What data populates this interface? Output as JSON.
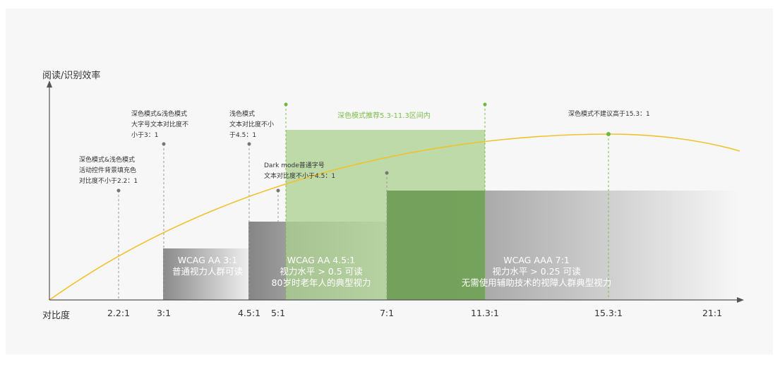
{
  "y_axis_label": "阅读/识别效率",
  "x_axis_label": "对比度",
  "ticks": [
    "2.2:1",
    "3:1",
    "4.5:1",
    "5:1",
    "7:1",
    "11.3:1",
    "15.3:1",
    "21:1"
  ],
  "annotations": {
    "a22": [
      "深色模式&浅色模式",
      "活动控件背景填充色",
      "对比度不小于2.2：1"
    ],
    "a3": [
      "深色模式&浅色模式",
      "大字号文本对比度不",
      "小于3：1"
    ],
    "a45": [
      "浅色模式",
      "文本对比度不小",
      "于4.5：1"
    ],
    "a5": [
      "Dark mode普通字号",
      "文本对比度不小于4.5：1"
    ],
    "a153": [
      "深色模式不建议高于15.3：1"
    ]
  },
  "green_band_label": "深色模式推荐5.3-11.3区间内",
  "boxes": {
    "aa3": [
      "WCAG  AA   3:1",
      "普通视力人群可读"
    ],
    "aa45": [
      "WCAG  AA   4.5:1",
      "视力水平 > 0.5  可读",
      "80岁时老年人的典型视力"
    ],
    "aaa7": [
      "WCAG  AAA   7:1",
      "视力水平 > 0.25  可读",
      "无需使用辅助技术的视障人群典型视力"
    ]
  },
  "colors": {
    "curve": "#f2c12e",
    "green_band": "#a9d08e",
    "green_dark": "#6f9e57",
    "axis": "#555555",
    "green_marker": "#6cbb3c"
  }
}
